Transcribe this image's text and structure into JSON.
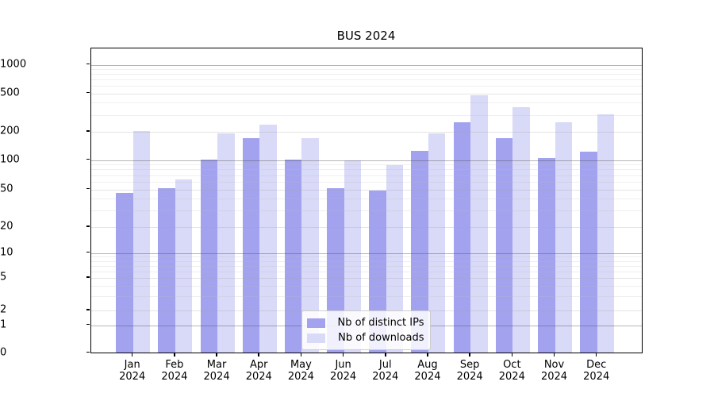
{
  "chart_data": {
    "type": "bar",
    "title": "BUS 2024",
    "categories": [
      "Jan 2024",
      "Feb 2024",
      "Mar 2024",
      "Apr 2024",
      "May 2024",
      "Jun 2024",
      "Jul 2024",
      "Aug 2024",
      "Sep 2024",
      "Oct 2024",
      "Nov 2024",
      "Dec 2024"
    ],
    "series": [
      {
        "name": "Nb of distinct IPs",
        "color": "#a2a2ef",
        "values": [
          44,
          50,
          97,
          166,
          97,
          50,
          47,
          120,
          240,
          165,
          101,
          117
        ]
      },
      {
        "name": "Nb of downloads",
        "color": "#d9d9f8",
        "values": [
          195,
          61,
          185,
          230,
          166,
          95,
          85,
          185,
          460,
          350,
          240,
          290
        ]
      }
    ],
    "xlabel": "",
    "ylabel": "",
    "yticks": [
      0,
      1,
      2,
      5,
      10,
      20,
      50,
      100,
      200,
      500,
      1000
    ],
    "ylim": [
      0,
      1200
    ],
    "yscale": "symlog",
    "grid": true,
    "legend_position": "lower center"
  }
}
